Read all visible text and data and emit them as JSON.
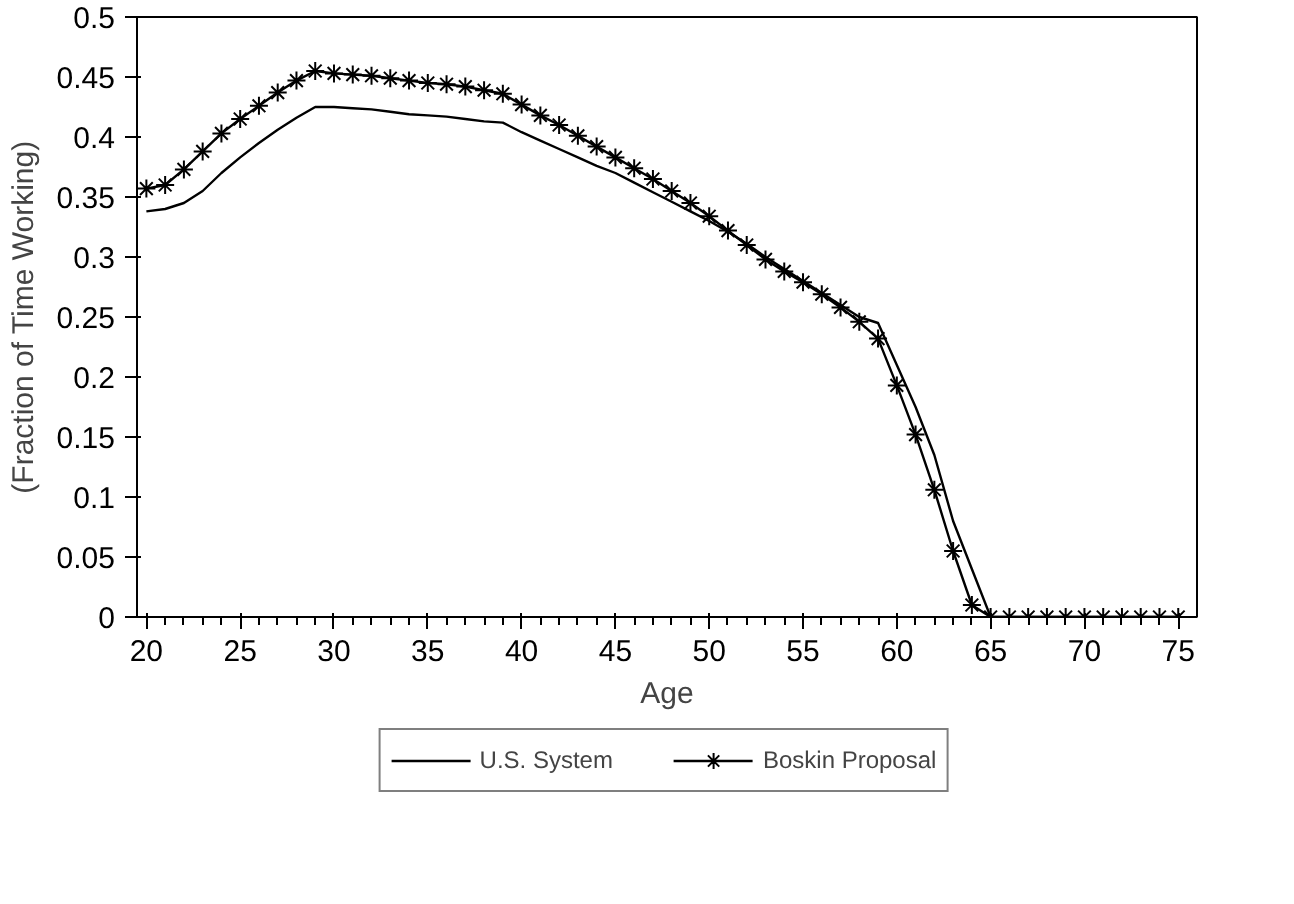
{
  "chart_data": {
    "type": "line",
    "xlabel": "Age",
    "ylabel": "(Fraction of Time Working)",
    "x": [
      20,
      21,
      22,
      23,
      24,
      25,
      26,
      27,
      28,
      29,
      30,
      31,
      32,
      33,
      34,
      35,
      36,
      37,
      38,
      39,
      40,
      41,
      42,
      43,
      44,
      45,
      46,
      47,
      48,
      49,
      50,
      51,
      52,
      53,
      54,
      55,
      56,
      57,
      58,
      59,
      60,
      61,
      62,
      63,
      64,
      65,
      66,
      67,
      68,
      69,
      70,
      71,
      72,
      73,
      74,
      75
    ],
    "series": [
      {
        "name": "U.S. System",
        "color": "#000000",
        "marker": "none",
        "values": [
          0.338,
          0.34,
          0.345,
          0.355,
          0.37,
          0.383,
          0.395,
          0.406,
          0.416,
          0.425,
          0.425,
          0.424,
          0.423,
          0.421,
          0.419,
          0.418,
          0.417,
          0.415,
          0.413,
          0.412,
          0.404,
          0.397,
          0.39,
          0.383,
          0.376,
          0.37,
          0.362,
          0.354,
          0.346,
          0.338,
          0.33,
          0.321,
          0.311,
          0.3,
          0.29,
          0.28,
          0.27,
          0.26,
          0.25,
          0.245,
          0.21,
          0.175,
          0.135,
          0.08,
          0.04,
          0,
          0,
          0,
          0,
          0,
          0,
          0,
          0,
          0,
          0,
          0
        ]
      },
      {
        "name": "Boskin Proposal",
        "color": "#000000",
        "marker": "cross",
        "values": [
          0.357,
          0.36,
          0.373,
          0.388,
          0.403,
          0.415,
          0.426,
          0.437,
          0.447,
          0.455,
          0.453,
          0.452,
          0.451,
          0.449,
          0.447,
          0.445,
          0.444,
          0.442,
          0.439,
          0.436,
          0.427,
          0.418,
          0.41,
          0.401,
          0.392,
          0.383,
          0.374,
          0.365,
          0.355,
          0.345,
          0.334,
          0.322,
          0.31,
          0.298,
          0.288,
          0.279,
          0.269,
          0.258,
          0.246,
          0.232,
          0.193,
          0.152,
          0.106,
          0.055,
          0.01,
          0,
          0,
          0,
          0,
          0,
          0,
          0,
          0,
          0,
          0,
          0
        ]
      }
    ],
    "xlim": [
      19.5,
      76
    ],
    "ylim": [
      0,
      0.5
    ],
    "xticks": [
      20,
      25,
      30,
      35,
      40,
      45,
      50,
      55,
      60,
      65,
      70,
      75
    ],
    "yticks": [
      0,
      0.05,
      0.1,
      0.15,
      0.2,
      0.25,
      0.3,
      0.35,
      0.4,
      0.45,
      0.5
    ],
    "grid": false,
    "legend": "bottom",
    "line_style": "solid"
  }
}
